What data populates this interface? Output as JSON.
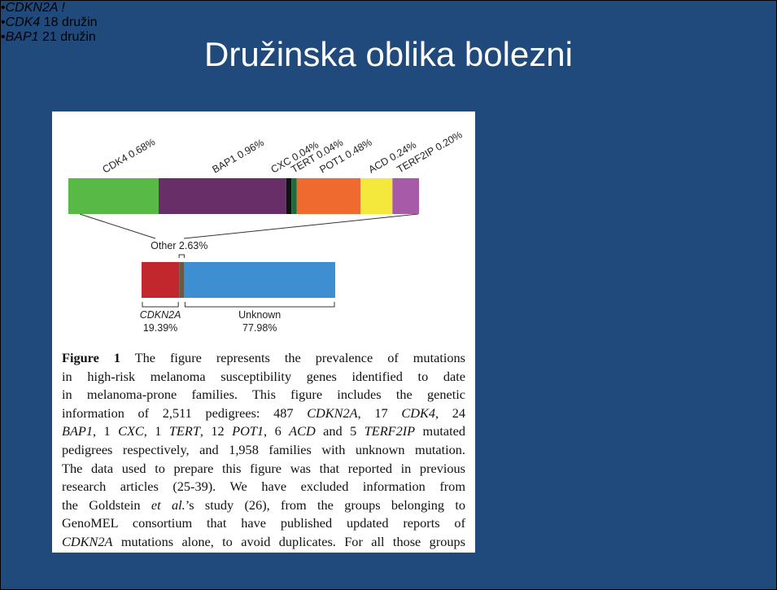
{
  "slide": {
    "title": "Družinska oblika bolezni",
    "bullets": [
      {
        "gene": "CDKN2A !"
      },
      {
        "gene": "CDK4",
        "text": "18 družin"
      },
      {
        "gene": "BAP1",
        "text": "21 družin"
      }
    ]
  },
  "figure": {
    "top_segments": [
      {
        "label": "CDK4 0.68%",
        "value": 0.68,
        "color": "#58b947"
      },
      {
        "label": "BAP1 0.96%",
        "value": 0.96,
        "color": "#682e68"
      },
      {
        "label": "CXC 0.04%",
        "value": 0.04,
        "color": "#111111"
      },
      {
        "label": "TERT 0.04%",
        "value": 0.04,
        "color": "#1f6b3a"
      },
      {
        "label": "POT1 0.48%",
        "value": 0.48,
        "color": "#ef6a2e"
      },
      {
        "label": "ACD 0.24%",
        "value": 0.24,
        "color": "#f4e83c"
      },
      {
        "label": "TERF2IP 0.20%",
        "value": 0.2,
        "color": "#a65aa8"
      }
    ],
    "other": {
      "label": "Other 2.63%",
      "value": 2.63,
      "color": "#6b5a40"
    },
    "bottom_segments": [
      {
        "name": "CDKN2A",
        "label": "19.39%",
        "value": 19.39,
        "color": "#c1272d"
      },
      {
        "name": "Unknown",
        "label": "77.98%",
        "value": 77.98,
        "color": "#3d8fd1"
      }
    ],
    "caption_lines": [
      [
        {
          "t": "Figure 1",
          "b": true
        },
        " The figure represents the prevalence of mutations"
      ],
      [
        "in high-risk melanoma susceptibility genes identified to date"
      ],
      [
        "in melanoma-prone families. This figure includes the genetic"
      ],
      [
        "information of 2,511 pedigrees: 487 ",
        {
          "t": "CDKN2A",
          "i": true
        },
        ", 17 ",
        {
          "t": "CDK4",
          "i": true
        },
        ", 24"
      ],
      [
        {
          "t": "BAP1",
          "i": true
        },
        ", 1 ",
        {
          "t": "CXC",
          "i": true
        },
        ", 1 ",
        {
          "t": "TERT",
          "i": true
        },
        ", 12 ",
        {
          "t": "POT1",
          "i": true
        },
        ", 6 ",
        {
          "t": "ACD",
          "i": true
        },
        " and 5 ",
        {
          "t": "TERF2IP",
          "i": true
        },
        " mutated"
      ],
      [
        "pedigrees respectively, and 1,958 families with unknown mutation."
      ],
      [
        "The data used to prepare this figure was that reported in previous"
      ],
      [
        "research articles (25-39). We have excluded information from"
      ],
      [
        "the Goldstein ",
        {
          "t": "et al.",
          "i": true
        },
        "’s study (26), from the groups belonging to"
      ],
      [
        "GenoMEL consortium that have published updated reports of"
      ],
      [
        {
          "t": "CDKN2A",
          "i": true
        },
        " mutations alone, to avoid duplicates. For all those groups"
      ]
    ]
  }
}
